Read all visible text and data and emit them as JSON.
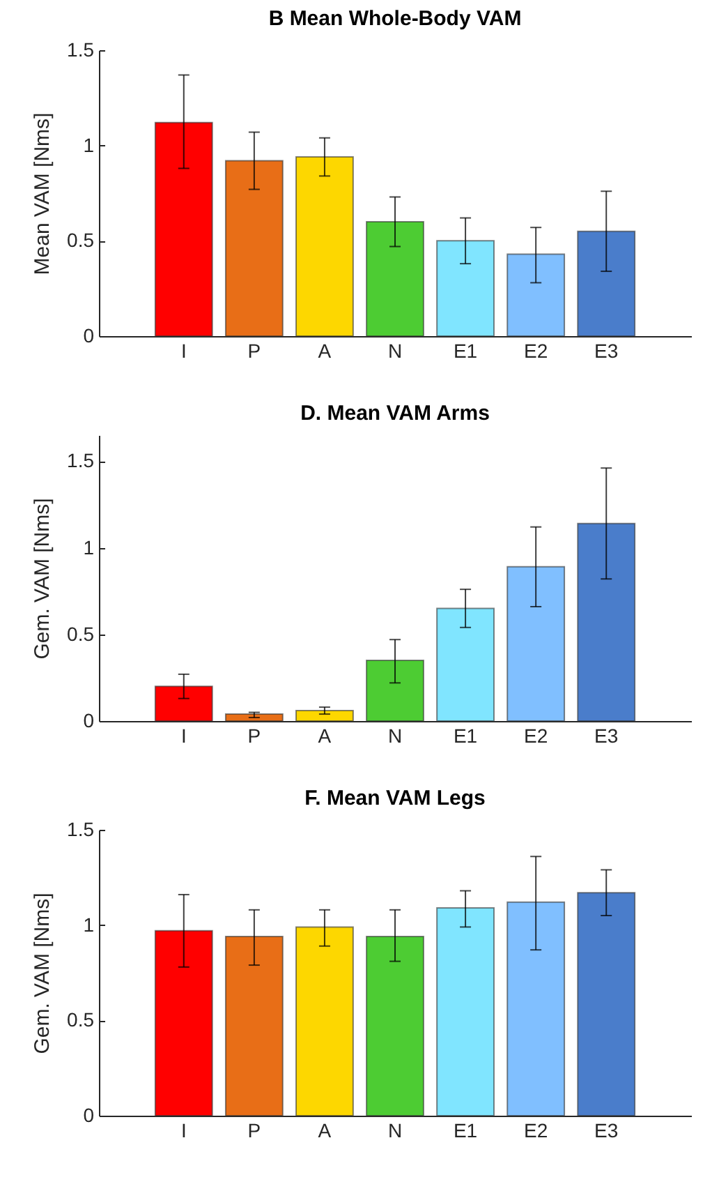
{
  "chart_data": [
    {
      "type": "bar",
      "title": "B Mean Whole-Body VAM",
      "ylabel": "Mean VAM [Nms]",
      "categories": [
        "I",
        "P",
        "A",
        "N",
        "E1",
        "E2",
        "E3"
      ],
      "values": [
        1.12,
        0.92,
        0.94,
        0.6,
        0.5,
        0.43,
        0.55
      ],
      "colors": [
        "#ff0000",
        "#e86e17",
        "#fdd700",
        "#4dcc33",
        "#80e5ff",
        "#80bfff",
        "#4a7dcb"
      ],
      "errors": [
        [
          0.88,
          1.37
        ],
        [
          0.77,
          1.07
        ],
        [
          0.84,
          1.04
        ],
        [
          0.47,
          0.73
        ],
        [
          0.38,
          0.62
        ],
        [
          0.28,
          0.57
        ],
        [
          0.34,
          0.76
        ]
      ],
      "ylim": [
        0,
        1.5
      ],
      "yticks": [
        0,
        0.5,
        1,
        1.5
      ],
      "grid": false
    },
    {
      "type": "bar",
      "title": "D. Mean VAM Arms",
      "ylabel": "Gem. VAM [Nms]",
      "categories": [
        "I",
        "P",
        "A",
        "N",
        "E1",
        "E2",
        "E3"
      ],
      "values": [
        0.2,
        0.04,
        0.06,
        0.35,
        0.65,
        0.89,
        1.14
      ],
      "colors": [
        "#ff0000",
        "#e86e17",
        "#fdd700",
        "#4dcc33",
        "#80e5ff",
        "#80bfff",
        "#4a7dcb"
      ],
      "errors": [
        [
          0.13,
          0.27
        ],
        [
          0.02,
          0.05
        ],
        [
          0.04,
          0.08
        ],
        [
          0.22,
          0.47
        ],
        [
          0.54,
          0.76
        ],
        [
          0.66,
          1.12
        ],
        [
          0.82,
          1.46
        ]
      ],
      "ylim": [
        0,
        1.65
      ],
      "yticks": [
        0,
        0.5,
        1,
        1.5
      ],
      "grid": false
    },
    {
      "type": "bar",
      "title": "F. Mean VAM Legs",
      "ylabel": "Gem. VAM [Nms]",
      "categories": [
        "I",
        "P",
        "A",
        "N",
        "E1",
        "E2",
        "E3"
      ],
      "values": [
        0.97,
        0.94,
        0.99,
        0.94,
        1.09,
        1.12,
        1.17
      ],
      "colors": [
        "#ff0000",
        "#e86e17",
        "#fdd700",
        "#4dcc33",
        "#80e5ff",
        "#80bfff",
        "#4a7dcb"
      ],
      "errors": [
        [
          0.78,
          1.16
        ],
        [
          0.79,
          1.08
        ],
        [
          0.89,
          1.08
        ],
        [
          0.81,
          1.08
        ],
        [
          0.99,
          1.18
        ],
        [
          0.87,
          1.36
        ],
        [
          1.05,
          1.29
        ]
      ],
      "ylim": [
        0,
        1.5
      ],
      "yticks": [
        0,
        0.5,
        1,
        1.5
      ],
      "grid": false
    }
  ]
}
